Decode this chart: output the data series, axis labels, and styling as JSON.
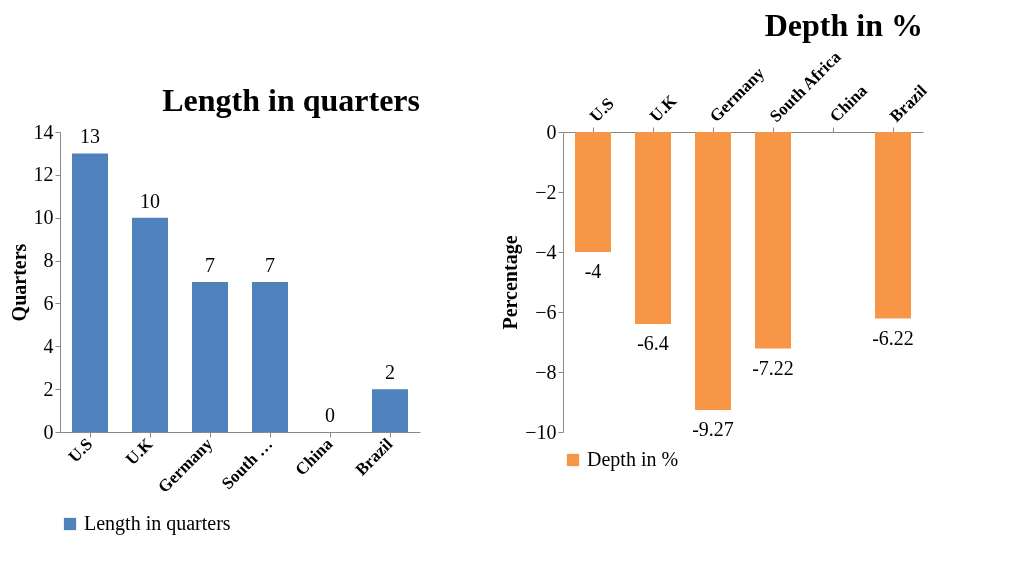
{
  "chart_data": [
    {
      "type": "bar",
      "title": "Length in quarters",
      "categories": [
        "U.S",
        "U.K",
        "Germany",
        "South …",
        "China",
        "Brazil"
      ],
      "ylabel": "Quarters",
      "ylim": [
        0,
        14
      ],
      "yticks": [
        0,
        2,
        4,
        6,
        8,
        10,
        12,
        14
      ],
      "legend": "bottom",
      "data_labels": true,
      "series": [
        {
          "name": "Length in quarters",
          "color": "#4f81bd",
          "values": [
            13,
            10,
            7,
            7,
            0,
            2
          ]
        }
      ]
    },
    {
      "type": "bar",
      "title": "Depth in %",
      "categories": [
        "U.S",
        "U.K",
        "Germany",
        "South Africa",
        "China",
        "Brazil"
      ],
      "ylabel": "Percentage",
      "ylim": [
        -10,
        0
      ],
      "yticks": [
        -10,
        -8,
        -6,
        -4,
        -2,
        0
      ],
      "legend": "bottom",
      "data_labels": true,
      "series": [
        {
          "name": "Depth in %",
          "color": "#f79646",
          "values": [
            -4,
            -6.4,
            -9.27,
            -7.22,
            null,
            -6.22
          ]
        }
      ]
    }
  ]
}
